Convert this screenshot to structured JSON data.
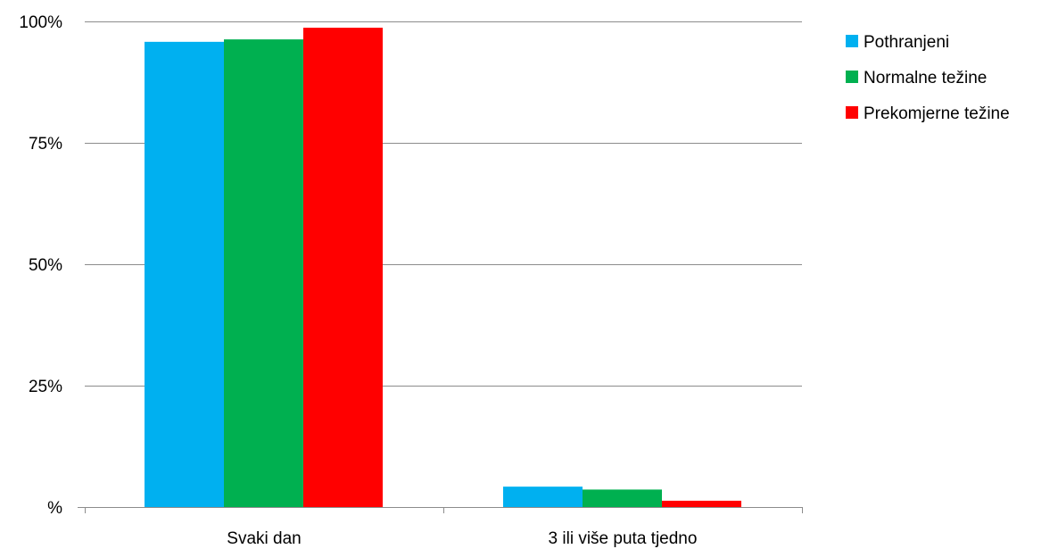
{
  "chart_data": {
    "type": "bar",
    "title": "",
    "xlabel": "",
    "ylabel": "",
    "categories": [
      "Svaki dan",
      "3 ili više puta tjedno"
    ],
    "series": [
      {
        "name": "Pothranjeni",
        "color": "#00b0f0",
        "values": [
          95.8,
          4.2
        ]
      },
      {
        "name": "Normalne težine",
        "color": "#00b050",
        "values": [
          96.3,
          3.6
        ]
      },
      {
        "name": "Prekomjerne težine",
        "color": "#ff0000",
        "values": [
          98.7,
          1.3
        ]
      }
    ],
    "ylim": [
      0,
      100
    ],
    "yticks": [
      0,
      25,
      50,
      75,
      100
    ],
    "ytick_labels": [
      "%",
      "25%",
      "50%",
      "75%",
      "100%"
    ],
    "grid": true,
    "legend_position": "right"
  }
}
